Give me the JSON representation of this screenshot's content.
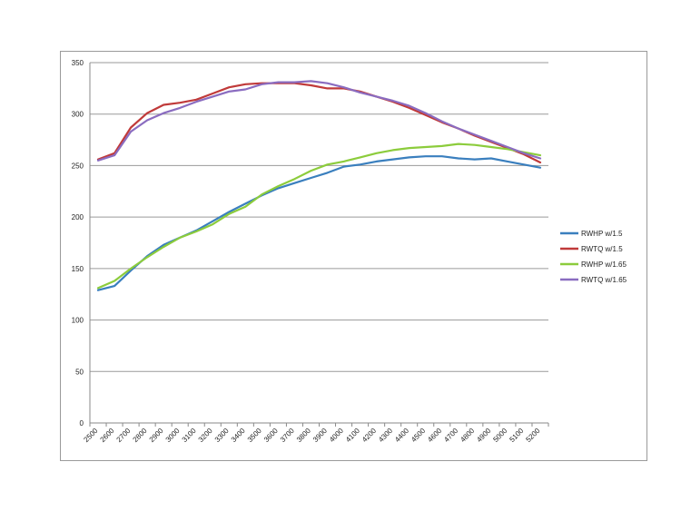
{
  "chart_data": {
    "type": "line",
    "title": "",
    "xlabel": "",
    "ylabel": "",
    "ylim": [
      0,
      350
    ],
    "yticks": [
      0,
      50,
      100,
      150,
      200,
      250,
      300,
      350
    ],
    "grid": true,
    "legend_position": "right",
    "categories": [
      "2500",
      "2600",
      "2700",
      "2800",
      "2900",
      "3000",
      "3100",
      "3200",
      "3300",
      "3400",
      "3500",
      "3600",
      "3700",
      "3800",
      "3900",
      "4000",
      "4100",
      "4200",
      "4300",
      "4400",
      "4500",
      "4600",
      "4700",
      "4800",
      "4900",
      "5000",
      "5100",
      "5200"
    ],
    "series": [
      {
        "name": "RWHP w/1.5",
        "color": "#3a7fbe",
        "values": [
          129,
          133,
          148,
          162,
          173,
          180,
          187,
          196,
          205,
          213,
          221,
          228,
          233,
          238,
          243,
          249,
          251,
          254,
          256,
          258,
          259,
          259,
          257,
          256,
          257,
          254,
          251,
          248
        ]
      },
      {
        "name": "RWTQ w/1.5",
        "color": "#c03a3a",
        "values": [
          256,
          262,
          287,
          301,
          309,
          311,
          314,
          320,
          326,
          329,
          330,
          330,
          330,
          328,
          325,
          325,
          322,
          317,
          312,
          306,
          299,
          292,
          286,
          279,
          273,
          267,
          261,
          253
        ]
      },
      {
        "name": "RWHP w/1.65",
        "color": "#8ccc3c",
        "values": [
          131,
          138,
          150,
          161,
          171,
          180,
          186,
          193,
          203,
          210,
          222,
          230,
          237,
          245,
          251,
          254,
          258,
          262,
          265,
          267,
          268,
          269,
          271,
          270,
          268,
          266,
          263,
          260
        ]
      },
      {
        "name": "RWTQ w/1.65",
        "color": "#8a6cc0",
        "values": [
          255,
          260,
          283,
          294,
          301,
          306,
          312,
          317,
          322,
          324,
          329,
          331,
          331,
          332,
          330,
          326,
          321,
          317,
          313,
          308,
          301,
          293,
          286,
          280,
          274,
          268,
          262,
          257
        ]
      }
    ]
  }
}
